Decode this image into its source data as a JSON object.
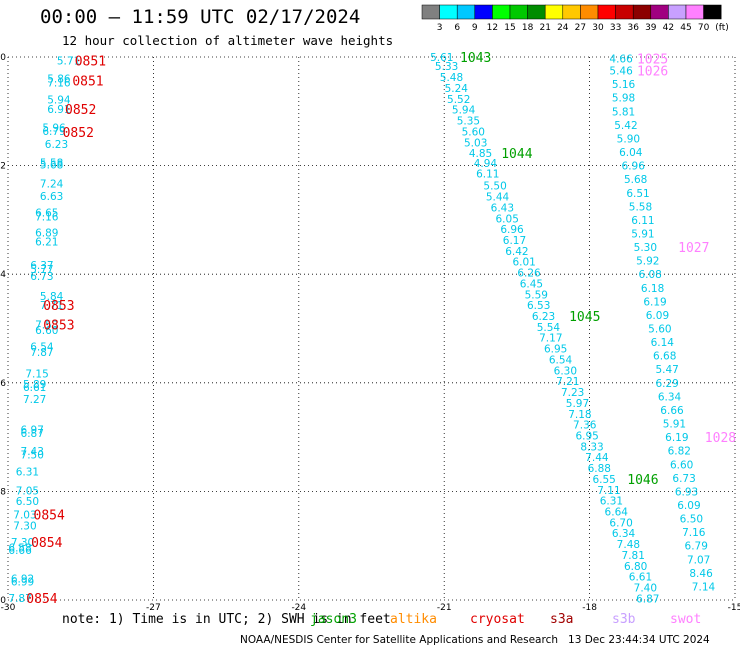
{
  "header": {
    "title": "00:00 — 11:59 UTC 02/17/2024",
    "subtitle": "12 hour collection of altimeter wave heights"
  },
  "colorbar": {
    "labels": [
      "3",
      "6",
      "9",
      "12",
      "15",
      "18",
      "21",
      "24",
      "27",
      "30",
      "33",
      "36",
      "39",
      "42",
      "45",
      "70"
    ],
    "unit": "(ft)",
    "colors": [
      "#808080",
      "#00ffff",
      "#00c8ff",
      "#0000ff",
      "#00ff00",
      "#00c800",
      "#008c00",
      "#ffff00",
      "#ffc800",
      "#ff8c00",
      "#ff0000",
      "#c80000",
      "#8c0000",
      "#a00080",
      "#c8a0ff",
      "#ff80ff",
      "#000000"
    ]
  },
  "chart_data": {
    "type": "scatter",
    "xlim": [
      -30,
      -15
    ],
    "ylim": [
      10,
      20
    ],
    "y_inverted": true,
    "x_ticks": [
      "-30",
      "-27",
      "-24",
      "-21",
      "-18",
      "-15"
    ],
    "y_ticks": [
      "10",
      "12",
      "14",
      "16",
      "18",
      "20"
    ],
    "grid": true,
    "value_color": "#00c8e8",
    "tracks": [
      {
        "points": [
          {
            "x": -28.75,
            "y": 10.06,
            "v": "5.71"
          },
          {
            "x": -28.95,
            "y": 10.4,
            "v": "5.86"
          },
          {
            "x": -28.95,
            "y": 10.47,
            "v": "7.16"
          },
          {
            "x": -28.95,
            "y": 10.78,
            "v": "5.94"
          },
          {
            "x": -28.95,
            "y": 10.96,
            "v": "6.91"
          },
          {
            "x": -29.05,
            "y": 11.3,
            "v": "5.96"
          },
          {
            "x": -29.05,
            "y": 11.36,
            "v": "6.79"
          },
          {
            "x": -29.0,
            "y": 11.6,
            "v": "6.23"
          },
          {
            "x": -29.1,
            "y": 11.94,
            "v": "5.58"
          },
          {
            "x": -29.1,
            "y": 11.98,
            "v": "5.68"
          },
          {
            "x": -29.1,
            "y": 12.33,
            "v": "7.24"
          },
          {
            "x": -29.1,
            "y": 12.56,
            "v": "6.63"
          },
          {
            "x": -29.2,
            "y": 12.86,
            "v": "6.65"
          },
          {
            "x": -29.2,
            "y": 12.94,
            "v": "7.16"
          },
          {
            "x": -29.2,
            "y": 13.23,
            "v": "6.89"
          },
          {
            "x": -29.2,
            "y": 13.4,
            "v": "6.21"
          },
          {
            "x": -29.3,
            "y": 13.83,
            "v": "6.37"
          },
          {
            "x": -29.3,
            "y": 13.9,
            "v": "5.77"
          },
          {
            "x": -29.3,
            "y": 14.03,
            "v": "6.73"
          },
          {
            "x": -29.1,
            "y": 14.4,
            "v": "5.84"
          },
          {
            "x": -29.1,
            "y": 14.57,
            "v": "7.71"
          },
          {
            "x": -29.2,
            "y": 14.93,
            "v": "7.53"
          },
          {
            "x": -29.2,
            "y": 15.03,
            "v": "6.60"
          },
          {
            "x": -29.3,
            "y": 15.33,
            "v": "6.54"
          },
          {
            "x": -29.3,
            "y": 15.43,
            "v": "7.87"
          },
          {
            "x": -29.4,
            "y": 15.83,
            "v": "7.15"
          },
          {
            "x": -29.45,
            "y": 16.02,
            "v": "5.89"
          },
          {
            "x": -29.45,
            "y": 16.08,
            "v": "6.61"
          },
          {
            "x": -29.45,
            "y": 16.3,
            "v": "7.27"
          },
          {
            "x": -29.5,
            "y": 16.86,
            "v": "6.97"
          },
          {
            "x": -29.5,
            "y": 16.92,
            "v": "6.87"
          },
          {
            "x": -29.5,
            "y": 17.26,
            "v": "7.43"
          },
          {
            "x": -29.5,
            "y": 17.32,
            "v": "7.50"
          },
          {
            "x": -29.6,
            "y": 17.63,
            "v": "6.31"
          },
          {
            "x": -29.6,
            "y": 17.98,
            "v": "7.05"
          },
          {
            "x": -29.6,
            "y": 18.18,
            "v": "6.50"
          },
          {
            "x": -29.65,
            "y": 18.43,
            "v": "7.03"
          },
          {
            "x": -29.65,
            "y": 18.63,
            "v": "7.30"
          },
          {
            "x": -29.7,
            "y": 18.93,
            "v": "7.30"
          },
          {
            "x": -29.75,
            "y": 19.03,
            "v": "6.58"
          },
          {
            "x": -29.75,
            "y": 19.08,
            "v": "6.66"
          },
          {
            "x": -29.7,
            "y": 19.6,
            "v": "6.92"
          },
          {
            "x": -29.7,
            "y": 19.66,
            "v": "6.99"
          },
          {
            "x": -29.75,
            "y": 19.96,
            "v": "7.87"
          }
        ],
        "times": [
          {
            "x": -28.3,
            "y": 10.06,
            "t": "0851",
            "color": "#e00000"
          },
          {
            "x": -28.35,
            "y": 10.43,
            "t": "0851",
            "color": "#e00000"
          },
          {
            "x": -28.5,
            "y": 10.96,
            "t": "0852",
            "color": "#e00000"
          },
          {
            "x": -28.55,
            "y": 11.38,
            "t": "0852",
            "color": "#e00000"
          },
          {
            "x": -28.95,
            "y": 14.57,
            "t": "0853",
            "color": "#e00000"
          },
          {
            "x": -28.95,
            "y": 14.93,
            "t": "0853",
            "color": "#e00000"
          },
          {
            "x": -29.15,
            "y": 18.43,
            "t": "0854",
            "color": "#e00000"
          },
          {
            "x": -29.2,
            "y": 18.93,
            "t": "0854",
            "color": "#e00000"
          },
          {
            "x": -29.3,
            "y": 19.96,
            "t": "0854",
            "color": "#e00000"
          }
        ]
      },
      {
        "points": [
          {
            "x": -21.05,
            "y": 10.0,
            "v": "5.61"
          },
          {
            "x": -20.95,
            "y": 10.17,
            "v": "5.33"
          },
          {
            "x": -20.85,
            "y": 10.37,
            "v": "5.48"
          },
          {
            "x": -20.75,
            "y": 10.57,
            "v": "5.24"
          },
          {
            "x": -20.7,
            "y": 10.77,
            "v": "5.52"
          },
          {
            "x": -20.6,
            "y": 10.97,
            "v": "5.94"
          },
          {
            "x": -20.5,
            "y": 11.17,
            "v": "5.35"
          },
          {
            "x": -20.4,
            "y": 11.37,
            "v": "5.60"
          },
          {
            "x": -20.35,
            "y": 11.57,
            "v": "5.03"
          },
          {
            "x": -20.25,
            "y": 11.77,
            "v": "4.85"
          },
          {
            "x": -20.15,
            "y": 11.95,
            "v": "4.94"
          },
          {
            "x": -20.1,
            "y": 12.15,
            "v": "6.11"
          },
          {
            "x": -19.95,
            "y": 12.37,
            "v": "5.50"
          },
          {
            "x": -19.9,
            "y": 12.57,
            "v": "5.44"
          },
          {
            "x": -19.8,
            "y": 12.77,
            "v": "6.43"
          },
          {
            "x": -19.7,
            "y": 12.97,
            "v": "6.05"
          },
          {
            "x": -19.6,
            "y": 13.17,
            "v": "6.96"
          },
          {
            "x": -19.55,
            "y": 13.37,
            "v": "6.17"
          },
          {
            "x": -19.5,
            "y": 13.57,
            "v": "6.42"
          },
          {
            "x": -19.35,
            "y": 13.77,
            "v": "6.01"
          },
          {
            "x": -19.25,
            "y": 13.97,
            "v": "6.26"
          },
          {
            "x": -19.2,
            "y": 14.17,
            "v": "6.45"
          },
          {
            "x": -19.1,
            "y": 14.37,
            "v": "5.59"
          },
          {
            "x": -19.05,
            "y": 14.57,
            "v": "6.53"
          },
          {
            "x": -18.95,
            "y": 14.77,
            "v": "6.23"
          },
          {
            "x": -18.85,
            "y": 14.97,
            "v": "5.54"
          },
          {
            "x": -18.8,
            "y": 15.17,
            "v": "7.17"
          },
          {
            "x": -18.7,
            "y": 15.37,
            "v": "6.95"
          },
          {
            "x": -18.6,
            "y": 15.57,
            "v": "6.54"
          },
          {
            "x": -18.5,
            "y": 15.77,
            "v": "6.30"
          },
          {
            "x": -18.45,
            "y": 15.97,
            "v": "7.21"
          },
          {
            "x": -18.35,
            "y": 16.17,
            "v": "7.23"
          },
          {
            "x": -18.25,
            "y": 16.37,
            "v": "5.97"
          },
          {
            "x": -18.2,
            "y": 16.57,
            "v": "7.18"
          },
          {
            "x": -18.1,
            "y": 16.77,
            "v": "7.36"
          },
          {
            "x": -18.05,
            "y": 16.97,
            "v": "6.95"
          },
          {
            "x": -17.95,
            "y": 17.17,
            "v": "8.33"
          },
          {
            "x": -17.85,
            "y": 17.37,
            "v": "7.44"
          },
          {
            "x": -17.8,
            "y": 17.57,
            "v": "6.88"
          },
          {
            "x": -17.7,
            "y": 17.77,
            "v": "6.55"
          },
          {
            "x": -17.6,
            "y": 17.97,
            "v": "7.11"
          },
          {
            "x": -17.55,
            "y": 18.17,
            "v": "6.31"
          },
          {
            "x": -17.45,
            "y": 18.37,
            "v": "6.64"
          },
          {
            "x": -17.35,
            "y": 18.57,
            "v": "6.70"
          },
          {
            "x": -17.3,
            "y": 18.77,
            "v": "6.34"
          },
          {
            "x": -17.2,
            "y": 18.97,
            "v": "7.48"
          },
          {
            "x": -17.1,
            "y": 19.17,
            "v": "7.81"
          },
          {
            "x": -17.05,
            "y": 19.37,
            "v": "6.80"
          },
          {
            "x": -16.95,
            "y": 19.57,
            "v": "6.61"
          },
          {
            "x": -16.85,
            "y": 19.77,
            "v": "7.40"
          },
          {
            "x": -16.8,
            "y": 19.97,
            "v": "6.87"
          }
        ],
        "times": [
          {
            "x": -20.35,
            "y": 10.0,
            "t": "1043",
            "color": "#00a000"
          },
          {
            "x": -19.5,
            "y": 11.77,
            "t": "1044",
            "color": "#00a000"
          },
          {
            "x": -18.1,
            "y": 14.77,
            "t": "1045",
            "color": "#00a000"
          },
          {
            "x": -16.9,
            "y": 17.77,
            "t": "1046",
            "color": "#00a000"
          }
        ]
      },
      {
        "points": [
          {
            "x": -17.35,
            "y": 10.03,
            "v": "4.66"
          },
          {
            "x": -17.35,
            "y": 10.25,
            "v": "5.46"
          },
          {
            "x": -17.3,
            "y": 10.5,
            "v": "5.16"
          },
          {
            "x": -17.3,
            "y": 10.75,
            "v": "5.98"
          },
          {
            "x": -17.3,
            "y": 11.0,
            "v": "5.81"
          },
          {
            "x": -17.25,
            "y": 11.25,
            "v": "5.42"
          },
          {
            "x": -17.2,
            "y": 11.5,
            "v": "5.90"
          },
          {
            "x": -17.15,
            "y": 11.75,
            "v": "6.04"
          },
          {
            "x": -17.1,
            "y": 12.0,
            "v": "6.96"
          },
          {
            "x": -17.05,
            "y": 12.25,
            "v": "5.68"
          },
          {
            "x": -17.0,
            "y": 12.5,
            "v": "6.51"
          },
          {
            "x": -16.95,
            "y": 12.75,
            "v": "5.58"
          },
          {
            "x": -16.9,
            "y": 13.0,
            "v": "6.11"
          },
          {
            "x": -16.9,
            "y": 13.25,
            "v": "5.91"
          },
          {
            "x": -16.85,
            "y": 13.5,
            "v": "5.30"
          },
          {
            "x": -16.8,
            "y": 13.75,
            "v": "5.92"
          },
          {
            "x": -16.75,
            "y": 14.0,
            "v": "6.08"
          },
          {
            "x": -16.7,
            "y": 14.25,
            "v": "6.18"
          },
          {
            "x": -16.65,
            "y": 14.5,
            "v": "6.19"
          },
          {
            "x": -16.6,
            "y": 14.75,
            "v": "6.09"
          },
          {
            "x": -16.55,
            "y": 15.0,
            "v": "5.60"
          },
          {
            "x": -16.5,
            "y": 15.25,
            "v": "6.14"
          },
          {
            "x": -16.45,
            "y": 15.5,
            "v": "6.68"
          },
          {
            "x": -16.4,
            "y": 15.75,
            "v": "5.47"
          },
          {
            "x": -16.4,
            "y": 16.0,
            "v": "6.29"
          },
          {
            "x": -16.35,
            "y": 16.25,
            "v": "6.34"
          },
          {
            "x": -16.3,
            "y": 16.5,
            "v": "6.66"
          },
          {
            "x": -16.25,
            "y": 16.75,
            "v": "5.91"
          },
          {
            "x": -16.2,
            "y": 17.0,
            "v": "6.19"
          },
          {
            "x": -16.15,
            "y": 17.25,
            "v": "6.82"
          },
          {
            "x": -16.1,
            "y": 17.5,
            "v": "6.60"
          },
          {
            "x": -16.05,
            "y": 17.75,
            "v": "6.73"
          },
          {
            "x": -16.0,
            "y": 18.0,
            "v": "6.93"
          },
          {
            "x": -15.95,
            "y": 18.25,
            "v": "6.09"
          },
          {
            "x": -15.9,
            "y": 18.5,
            "v": "6.50"
          },
          {
            "x": -15.85,
            "y": 18.75,
            "v": "7.16"
          },
          {
            "x": -15.8,
            "y": 19.0,
            "v": "6.79"
          },
          {
            "x": -15.75,
            "y": 19.25,
            "v": "7.07"
          },
          {
            "x": -15.7,
            "y": 19.5,
            "v": "8.46"
          },
          {
            "x": -15.65,
            "y": 19.75,
            "v": "7.14"
          }
        ],
        "times": [
          {
            "x": -16.7,
            "y": 10.03,
            "t": "1025",
            "color": "#ff80ff"
          },
          {
            "x": -16.7,
            "y": 10.25,
            "t": "1026",
            "color": "#ff80ff"
          },
          {
            "x": -15.85,
            "y": 13.5,
            "t": "1027",
            "color": "#ff80ff"
          },
          {
            "x": -15.3,
            "y": 17.0,
            "t": "1028",
            "color": "#ff80ff"
          }
        ]
      }
    ]
  },
  "note": {
    "text": "note: 1) Time is in UTC; 2) SWH is in feet"
  },
  "legend": [
    {
      "name": "jason3",
      "color": "#00a000"
    },
    {
      "name": "altika",
      "color": "#ff8c00"
    },
    {
      "name": "cryosat",
      "color": "#e00000"
    },
    {
      "name": "s3a",
      "color": "#a00000"
    },
    {
      "name": "s3b",
      "color": "#c8a0ff"
    },
    {
      "name": "swot",
      "color": "#ff80ff"
    }
  ],
  "footer": {
    "credit": "NOAA/NESDIS Center for Satellite Applications and Research   13 Dec 23:44:34 UTC 2024"
  }
}
